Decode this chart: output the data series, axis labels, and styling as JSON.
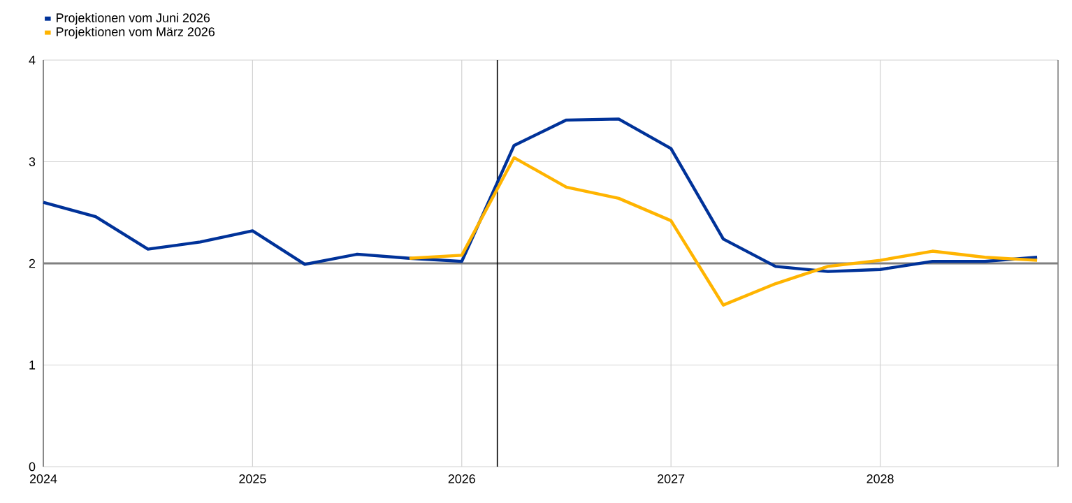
{
  "chart_data": {
    "type": "line",
    "x": [
      2024.0,
      2024.25,
      2024.5,
      2024.75,
      2025.0,
      2025.25,
      2025.5,
      2025.75,
      2026.0,
      2026.25,
      2026.5,
      2026.75,
      2027.0,
      2027.25,
      2027.5,
      2027.75,
      2028.0,
      2028.25,
      2028.5,
      2028.75
    ],
    "series": [
      {
        "name": "Projektionen vom Juni 2026",
        "color": "#003299",
        "values": [
          2.6,
          2.46,
          2.14,
          2.21,
          2.32,
          1.99,
          2.09,
          2.05,
          2.02,
          3.16,
          3.41,
          3.42,
          3.13,
          2.24,
          1.97,
          1.92,
          1.94,
          2.02,
          2.02,
          2.06
        ]
      },
      {
        "name": "Projektionen vom März 2026",
        "color": "#ffb400",
        "values": [
          null,
          null,
          null,
          null,
          null,
          null,
          null,
          2.05,
          2.08,
          3.04,
          2.75,
          2.64,
          2.42,
          1.59,
          1.8,
          1.97,
          2.03,
          2.12,
          2.06,
          2.03
        ]
      }
    ],
    "xlim": [
      2024,
      2028.85
    ],
    "xticks": [
      2024,
      2025,
      2026,
      2027,
      2028
    ],
    "ylim": [
      0,
      4
    ],
    "yticks": [
      0,
      1,
      2,
      3,
      4
    ],
    "ref_lines": [
      {
        "axis": "y",
        "value": 2,
        "color": "#808080"
      },
      {
        "axis": "x",
        "value": 2026.17,
        "color": "#000000"
      }
    ],
    "grid": true,
    "legend": "top left",
    "marker": "none",
    "line_style": "solid"
  }
}
